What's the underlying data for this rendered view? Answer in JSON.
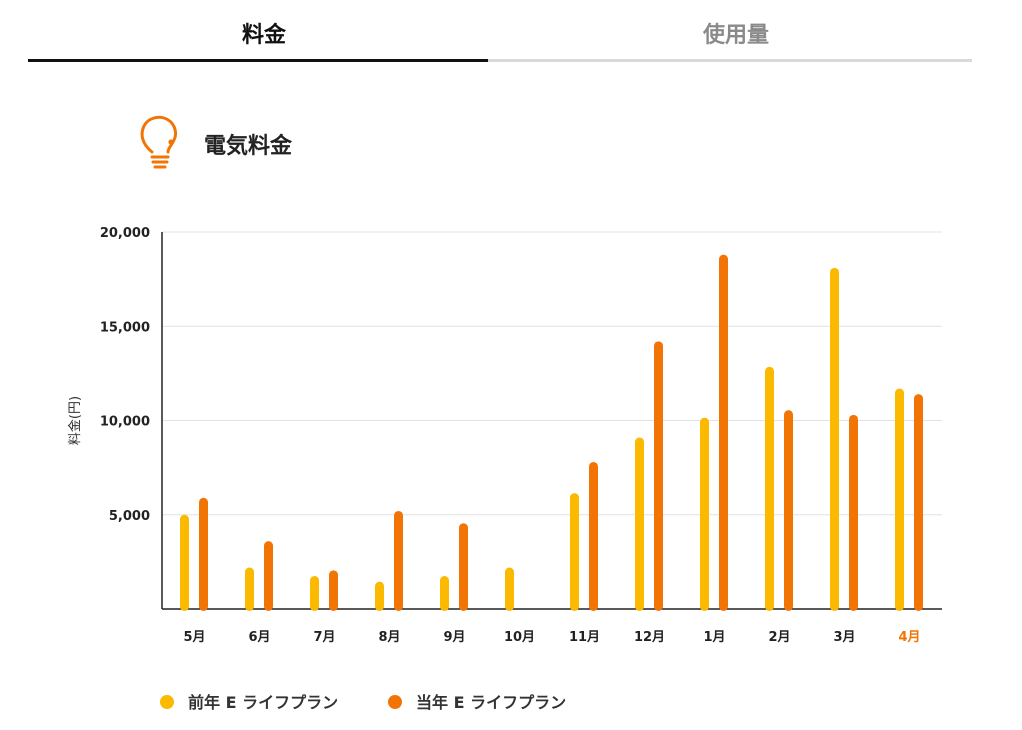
{
  "tabs": [
    {
      "label": "料金",
      "active": true
    },
    {
      "label": "使用量",
      "active": false
    }
  ],
  "section": {
    "title": "電気料金",
    "icon": "lightbulb-icon"
  },
  "colors": {
    "prev_year": "#FBB900",
    "curr_year": "#F27405",
    "highlight_label": "#F27405",
    "icon": "#F27405"
  },
  "chart_data": {
    "type": "bar",
    "ylabel": "料金(円)",
    "ylim": [
      0,
      20000
    ],
    "yticks": [
      5000,
      10000,
      15000,
      20000
    ],
    "ytick_labels": [
      "5,000",
      "10,000",
      "15,000",
      "20,000"
    ],
    "grid": true,
    "legend_position": "bottom-left",
    "categories": [
      "5月",
      "6月",
      "7月",
      "8月",
      "9月",
      "10月",
      "11月",
      "12月",
      "1月",
      "2月",
      "3月",
      "4月"
    ],
    "highlight_category": "4月",
    "series": [
      {
        "name": "前年 E ライフプラン",
        "values": [
          5000,
          2200,
          1750,
          1450,
          1750,
          2200,
          6150,
          9100,
          10150,
          12850,
          18100,
          11700
        ]
      },
      {
        "name": "当年 E ライフプラン",
        "values": [
          5900,
          3600,
          2050,
          5200,
          4550,
          null,
          7800,
          14200,
          18800,
          10550,
          10300,
          11400
        ]
      }
    ]
  }
}
